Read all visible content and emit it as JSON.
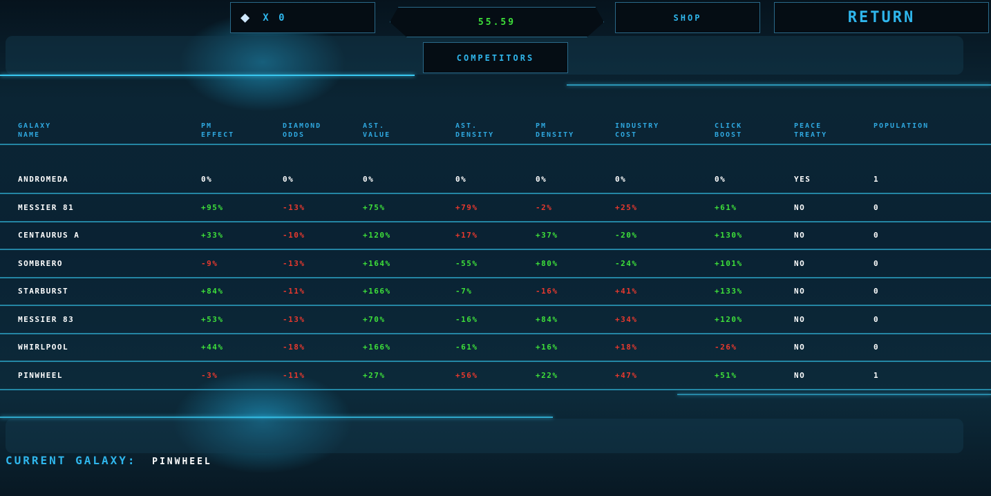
{
  "topbar": {
    "diamond_count": "X 0",
    "money": "55.59",
    "shop_label": "SHOP",
    "return_label": "RETURN",
    "competitors_label": "COMPETITORS"
  },
  "colors": {
    "positive": "#3ee03a",
    "negative": "#e8392e",
    "header": "#2fa8e0",
    "accent": "#2fb6ec"
  },
  "table": {
    "headers": [
      [
        "GALAXY",
        "NAME"
      ],
      [
        "PM",
        "EFFECT"
      ],
      [
        "DIAMOND",
        "ODDS"
      ],
      [
        "AST.",
        "VALUE"
      ],
      [
        "AST.",
        "DENSITY"
      ],
      [
        "PM",
        "DENSITY"
      ],
      [
        "INDUSTRY",
        "COST"
      ],
      [
        "CLICK",
        "BOOST"
      ],
      [
        "PEACE",
        "TREATY"
      ],
      [
        "POPULATION",
        ""
      ]
    ],
    "higher_is_better": [
      null,
      true,
      true,
      true,
      false,
      true,
      false,
      true,
      null,
      null
    ],
    "rows": [
      [
        "ANDROMEDA",
        "0%",
        "0%",
        "0%",
        "0%",
        "0%",
        "0%",
        "0%",
        "YES",
        "1"
      ],
      [
        "MESSIER 81",
        "+95%",
        "-13%",
        "+75%",
        "+79%",
        "-2%",
        "+25%",
        "+61%",
        "NO",
        "0"
      ],
      [
        "CENTAURUS A",
        "+33%",
        "-10%",
        "+120%",
        "+17%",
        "+37%",
        "-20%",
        "+130%",
        "NO",
        "0"
      ],
      [
        "SOMBRERO",
        "-9%",
        "-13%",
        "+164%",
        "-55%",
        "+80%",
        "-24%",
        "+101%",
        "NO",
        "0"
      ],
      [
        "STARBURST",
        "+84%",
        "-11%",
        "+166%",
        "-7%",
        "-16%",
        "+41%",
        "+133%",
        "NO",
        "0"
      ],
      [
        "MESSIER 83",
        "+53%",
        "-13%",
        "+70%",
        "-16%",
        "+84%",
        "+34%",
        "+120%",
        "NO",
        "0"
      ],
      [
        "WHIRLPOOL",
        "+44%",
        "-18%",
        "+166%",
        "-61%",
        "+16%",
        "+18%",
        "-26%",
        "NO",
        "0"
      ],
      [
        "PINWHEEL",
        "-3%",
        "-11%",
        "+27%",
        "+56%",
        "+22%",
        "+47%",
        "+51%",
        "NO",
        "1"
      ]
    ]
  },
  "footer": {
    "label": "CURRENT GALAXY:",
    "value": "PINWHEEL"
  }
}
